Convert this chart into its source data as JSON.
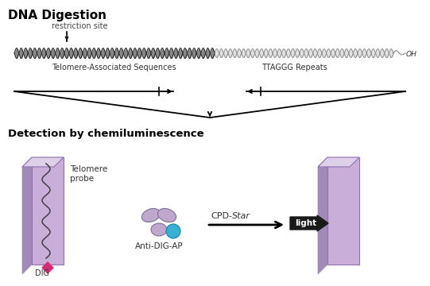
{
  "bg_color": "#ffffff",
  "title_dna": "DNA Digestion",
  "title_detection": "Detection by chemiluminescence",
  "label_restriction": "restriction site",
  "label_telomere_seq": "Telomere-Associated Sequences",
  "label_ttaggg": "TTAGGG Repeats",
  "label_oh": "OH",
  "label_dig": "DIG",
  "label_anti_dig": "Anti-DIG-AP",
  "label_telomere_probe_1": "Telomere",
  "label_telomere_probe_2": "probe",
  "label_cpd": "CPD-",
  "label_star": "Star",
  "label_light": "light",
  "purple_light": "#c8aed8",
  "purple_mid": "#b89cc8",
  "purple_dark": "#a08ab8",
  "purple_top": "#ddd0e8",
  "magenta_color": "#d82878",
  "cyan_color": "#38b0d0",
  "ab_color": "#c0a8cc",
  "dark_color": "#202020",
  "dna_dark_fill": "#606060",
  "dna_dark_line": "#202020",
  "dna_light_fill": "#d0d0d0",
  "dna_light_line": "#888888"
}
